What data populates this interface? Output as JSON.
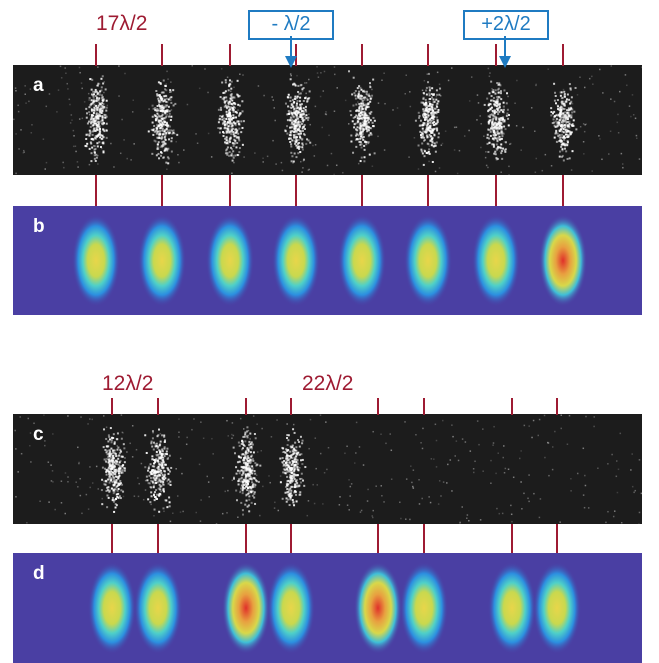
{
  "labels": {
    "top_left": "17λ/2",
    "box_minus": "- λ/2",
    "box_plus": "+2λ/2",
    "mid_left": "12λ/2",
    "mid_right": "22λ/2"
  },
  "panels": {
    "a": "a",
    "b": "b",
    "c": "c",
    "d": "d"
  },
  "colors": {
    "tick_red": "#9e1b32",
    "box_blue": "#1f7bc2",
    "dark_panel": "#1c1c1c",
    "blue_panel": "#4a3fa3"
  }
}
